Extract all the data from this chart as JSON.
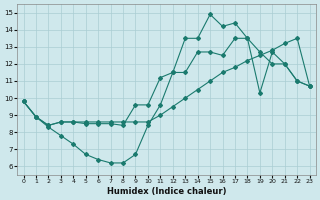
{
  "xlabel": "Humidex (Indice chaleur)",
  "background_color": "#cfe8ec",
  "grid_color": "#aacdd3",
  "line_color": "#1a7a6e",
  "xlim": [
    -0.5,
    23.5
  ],
  "ylim": [
    5.5,
    15.5
  ],
  "xticks": [
    0,
    1,
    2,
    3,
    4,
    5,
    6,
    7,
    8,
    9,
    10,
    11,
    12,
    13,
    14,
    15,
    16,
    17,
    18,
    19,
    20,
    21,
    22,
    23
  ],
  "yticks": [
    6,
    7,
    8,
    9,
    10,
    11,
    12,
    13,
    14,
    15
  ],
  "line1_x": [
    0,
    1,
    2,
    3,
    4,
    5,
    6,
    7,
    8,
    9,
    10,
    11,
    12,
    13,
    14,
    15,
    16,
    17,
    18,
    19,
    20,
    21,
    22,
    23
  ],
  "line1_y": [
    9.8,
    8.9,
    8.3,
    7.8,
    7.3,
    6.7,
    6.4,
    6.2,
    6.2,
    6.7,
    8.4,
    9.6,
    11.5,
    13.5,
    13.5,
    14.9,
    14.2,
    14.4,
    13.5,
    12.7,
    12.0,
    12.0,
    11.0,
    10.7
  ],
  "line2_x": [
    0,
    1,
    2,
    3,
    4,
    5,
    6,
    7,
    8,
    9,
    10,
    11,
    12,
    13,
    14,
    15,
    16,
    17,
    18,
    19,
    20,
    21,
    22,
    23
  ],
  "line2_y": [
    9.8,
    8.9,
    8.4,
    8.6,
    8.6,
    8.5,
    8.5,
    8.5,
    8.4,
    9.6,
    9.6,
    11.2,
    11.5,
    11.5,
    12.7,
    12.7,
    12.5,
    13.5,
    13.5,
    10.3,
    12.7,
    12.0,
    11.0,
    10.7
  ],
  "line3_x": [
    0,
    1,
    2,
    3,
    4,
    5,
    6,
    7,
    8,
    9,
    10,
    11,
    12,
    13,
    14,
    15,
    16,
    17,
    18,
    19,
    20,
    21,
    22,
    23
  ],
  "line3_y": [
    9.8,
    8.9,
    8.4,
    8.6,
    8.6,
    8.6,
    8.6,
    8.6,
    8.6,
    8.6,
    8.6,
    9.0,
    9.5,
    10.0,
    10.5,
    11.0,
    11.5,
    11.8,
    12.2,
    12.5,
    12.8,
    13.2,
    13.5,
    10.7
  ]
}
